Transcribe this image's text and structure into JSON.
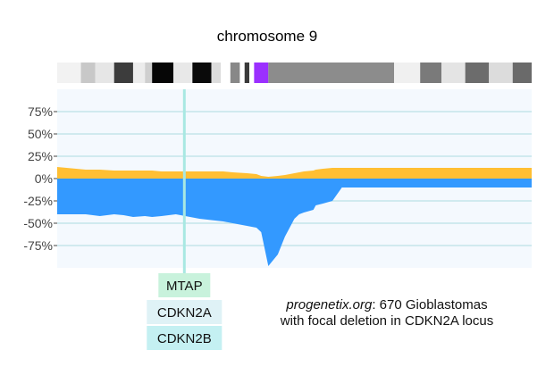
{
  "chart_data": {
    "type": "area",
    "title": "chromosome 9",
    "ylim": [
      -100,
      100
    ],
    "y_ticks": [
      75,
      50,
      25,
      0,
      -25,
      -50,
      -75
    ],
    "y_tick_labels": [
      "75%",
      "50%",
      "25%",
      "0%",
      "-25%",
      "-50%",
      "-75%"
    ],
    "grid": true,
    "colors": {
      "gain": "#ffbf33",
      "loss": "#3399ff",
      "plot_bg": "#f4f9fe",
      "grid": "#c4e6ea",
      "marker": "#a8e8e2",
      "centromere": "#9b30ff"
    },
    "x": [
      0,
      0.06,
      0.09,
      0.12,
      0.14,
      0.16,
      0.185,
      0.2,
      0.22,
      0.25,
      0.3,
      0.35,
      0.37,
      0.4,
      0.42,
      0.43,
      0.445,
      0.465,
      0.48,
      0.49,
      0.5,
      0.51,
      0.52,
      0.54,
      0.545,
      0.56,
      0.58,
      0.6,
      0.65,
      0.7,
      0.75,
      0.8,
      0.85,
      0.88,
      0.9,
      0.95,
      1.0
    ],
    "series": [
      {
        "values": [
          13,
          10,
          10,
          9,
          9,
          9,
          9,
          9,
          8,
          8,
          8,
          8,
          7,
          6,
          5,
          3,
          2,
          3,
          4,
          5,
          6,
          7,
          8,
          9,
          10,
          11,
          12,
          12,
          12,
          12,
          12,
          12,
          12,
          12,
          12,
          12,
          12
        ]
      },
      {
        "values": [
          -40,
          -40,
          -42,
          -40,
          -41,
          -43,
          -42,
          -43,
          -42,
          -40,
          -45,
          -48,
          -50,
          -53,
          -55,
          -60,
          -98,
          -85,
          -65,
          -55,
          -45,
          -40,
          -38,
          -35,
          -30,
          -28,
          -25,
          -10,
          -10,
          -10,
          -10,
          -10,
          -10,
          -10,
          -10,
          -10,
          -10
        ]
      }
    ],
    "ideogram": [
      {
        "start": 0.0,
        "end": 0.05,
        "color": "#f2f2f2"
      },
      {
        "start": 0.05,
        "end": 0.08,
        "color": "#c8c8c8"
      },
      {
        "start": 0.08,
        "end": 0.12,
        "color": "#e6e6e6"
      },
      {
        "start": 0.12,
        "end": 0.16,
        "color": "#3c3c3c"
      },
      {
        "start": 0.16,
        "end": 0.185,
        "color": "#ececec"
      },
      {
        "start": 0.185,
        "end": 0.2,
        "color": "#cfcfcf"
      },
      {
        "start": 0.2,
        "end": 0.245,
        "color": "#060606"
      },
      {
        "start": 0.245,
        "end": 0.285,
        "color": "#e8e8e8"
      },
      {
        "start": 0.285,
        "end": 0.325,
        "color": "#0a0a0a"
      },
      {
        "start": 0.325,
        "end": 0.345,
        "color": "#dcdcdc"
      },
      {
        "start": 0.345,
        "end": 0.365,
        "color": "#ffffff"
      },
      {
        "start": 0.365,
        "end": 0.385,
        "color": "#888888"
      },
      {
        "start": 0.385,
        "end": 0.395,
        "color": "#ffffff"
      },
      {
        "start": 0.395,
        "end": 0.405,
        "color": "#3a3a3a"
      },
      {
        "start": 0.405,
        "end": 0.415,
        "color": "#ffffff"
      },
      {
        "start": 0.415,
        "end": 0.445,
        "color": "#9b30ff"
      },
      {
        "start": 0.445,
        "end": 0.71,
        "color": "#8c8c8c"
      },
      {
        "start": 0.71,
        "end": 0.765,
        "color": "#f0f0f0"
      },
      {
        "start": 0.765,
        "end": 0.81,
        "color": "#7a7a7a"
      },
      {
        "start": 0.81,
        "end": 0.86,
        "color": "#e4e4e4"
      },
      {
        "start": 0.86,
        "end": 0.91,
        "color": "#6c6c6c"
      },
      {
        "start": 0.91,
        "end": 0.96,
        "color": "#dcdcdc"
      },
      {
        "start": 0.96,
        "end": 1.0,
        "color": "#6a6a6a"
      }
    ],
    "marker_x": 0.268,
    "genes": [
      {
        "label": "MTAP",
        "color": "#c8f2dc"
      },
      {
        "label": "CDKN2A",
        "color": "#dff2f6"
      },
      {
        "label": "CDKN2B",
        "color": "#c4f0f2"
      }
    ],
    "annotation": {
      "emphasis": "progenetix.org",
      "line1_rest": ": 670 Gioblastomas",
      "line2": "with focal deletion in CDKN2A locus"
    }
  }
}
